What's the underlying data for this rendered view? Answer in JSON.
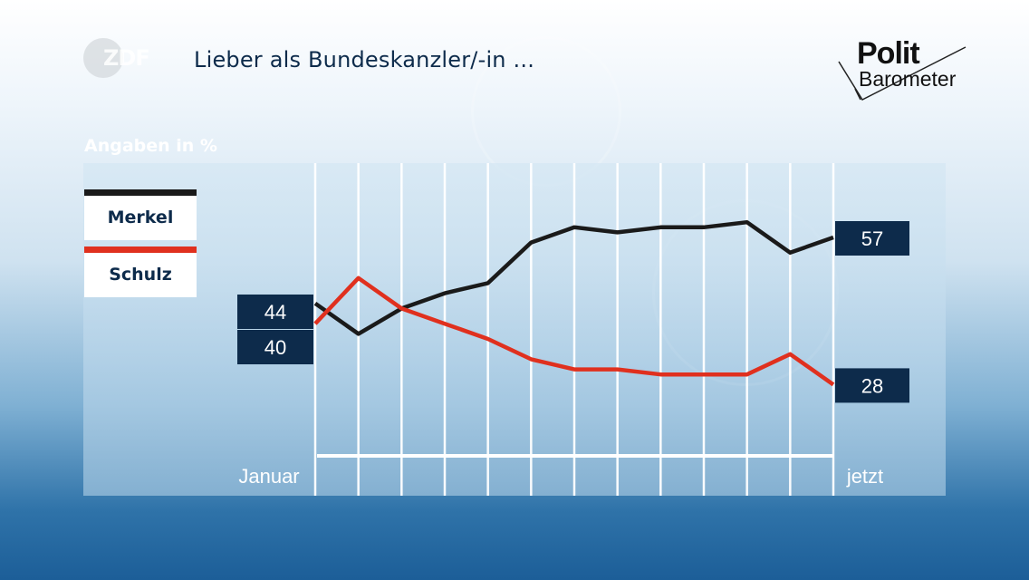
{
  "header": {
    "channel_logo": "ZDF",
    "title": "Lieber als Bundeskanzler/-in ...",
    "brand_line1": "Polit",
    "brand_line2": "Barometer"
  },
  "units_label": "Angaben in %",
  "colors": {
    "merkel": "#1a1a1a",
    "schulz": "#e0301e",
    "label_box": "#0d2b4b",
    "baseline": "#ffffff"
  },
  "chart_data": {
    "type": "line",
    "title": "Lieber als Bundeskanzler/-in ...",
    "ylabel": "Angaben in %",
    "x_start_label": "Januar",
    "x_end_label": "jetzt",
    "points": 13,
    "grid": "vertical",
    "legend_position": "left",
    "series": [
      {
        "name": "Merkel",
        "color": "#1a1a1a",
        "values": [
          44,
          38,
          43,
          46,
          48,
          56,
          59,
          58,
          59,
          59,
          60,
          54,
          57
        ],
        "start_label": "44",
        "end_label": "57"
      },
      {
        "name": "Schulz",
        "color": "#e0301e",
        "values": [
          40,
          49,
          43,
          40,
          37,
          33,
          31,
          31,
          30,
          30,
          30,
          34,
          28
        ],
        "start_label": "40",
        "end_label": "28"
      }
    ]
  }
}
